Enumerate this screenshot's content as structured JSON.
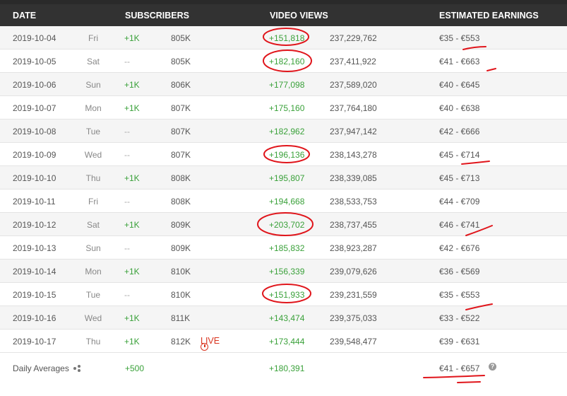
{
  "header": {
    "date": "DATE",
    "subscribers": "SUBSCRIBERS",
    "video_views": "VIDEO VIEWS",
    "earnings": "ESTIMATED EARNINGS"
  },
  "rows": [
    {
      "date": "2019-10-04",
      "day": "Fri",
      "sub_delta": "+1K",
      "subs": "805K",
      "views_delta": "+151,818",
      "views_total": "237,229,762",
      "earnings": "€35  -  €553"
    },
    {
      "date": "2019-10-05",
      "day": "Sat",
      "sub_delta": "--",
      "subs": "805K",
      "views_delta": "+182,160",
      "views_total": "237,411,922",
      "earnings": "€41  -  €663"
    },
    {
      "date": "2019-10-06",
      "day": "Sun",
      "sub_delta": "+1K",
      "subs": "806K",
      "views_delta": "+177,098",
      "views_total": "237,589,020",
      "earnings": "€40  -  €645"
    },
    {
      "date": "2019-10-07",
      "day": "Mon",
      "sub_delta": "+1K",
      "subs": "807K",
      "views_delta": "+175,160",
      "views_total": "237,764,180",
      "earnings": "€40  -  €638"
    },
    {
      "date": "2019-10-08",
      "day": "Tue",
      "sub_delta": "--",
      "subs": "807K",
      "views_delta": "+182,962",
      "views_total": "237,947,142",
      "earnings": "€42  -  €666"
    },
    {
      "date": "2019-10-09",
      "day": "Wed",
      "sub_delta": "--",
      "subs": "807K",
      "views_delta": "+196,136",
      "views_total": "238,143,278",
      "earnings": "€45  -  €714"
    },
    {
      "date": "2019-10-10",
      "day": "Thu",
      "sub_delta": "+1K",
      "subs": "808K",
      "views_delta": "+195,807",
      "views_total": "238,339,085",
      "earnings": "€45  -  €713"
    },
    {
      "date": "2019-10-11",
      "day": "Fri",
      "sub_delta": "--",
      "subs": "808K",
      "views_delta": "+194,668",
      "views_total": "238,533,753",
      "earnings": "€44  -  €709"
    },
    {
      "date": "2019-10-12",
      "day": "Sat",
      "sub_delta": "+1K",
      "subs": "809K",
      "views_delta": "+203,702",
      "views_total": "238,737,455",
      "earnings": "€46  -  €741"
    },
    {
      "date": "2019-10-13",
      "day": "Sun",
      "sub_delta": "--",
      "subs": "809K",
      "views_delta": "+185,832",
      "views_total": "238,923,287",
      "earnings": "€42  -  €676"
    },
    {
      "date": "2019-10-14",
      "day": "Mon",
      "sub_delta": "+1K",
      "subs": "810K",
      "views_delta": "+156,339",
      "views_total": "239,079,626",
      "earnings": "€36  -  €569"
    },
    {
      "date": "2019-10-15",
      "day": "Tue",
      "sub_delta": "--",
      "subs": "810K",
      "views_delta": "+151,933",
      "views_total": "239,231,559",
      "earnings": "€35  -  €553"
    },
    {
      "date": "2019-10-16",
      "day": "Wed",
      "sub_delta": "+1K",
      "subs": "811K",
      "views_delta": "+143,474",
      "views_total": "239,375,033",
      "earnings": "€33  -  €522"
    },
    {
      "date": "2019-10-17",
      "day": "Thu",
      "sub_delta": "+1K",
      "subs": "812K",
      "live": "LIVE",
      "views_delta": "+173,444",
      "views_total": "239,548,477",
      "earnings": "€39  -  €631"
    }
  ],
  "averages": {
    "label": "Daily Averages",
    "sub_delta": "+500",
    "views_delta": "+180,391",
    "earnings": "€41  -  €657",
    "help_glyph": "?"
  },
  "colors": {
    "header_bg": "#323232",
    "positive": "#3aa13a",
    "live": "#d9341f",
    "annotation": "#e0151b"
  },
  "icons": [
    "clock-icon",
    "share-icon",
    "help-icon"
  ]
}
